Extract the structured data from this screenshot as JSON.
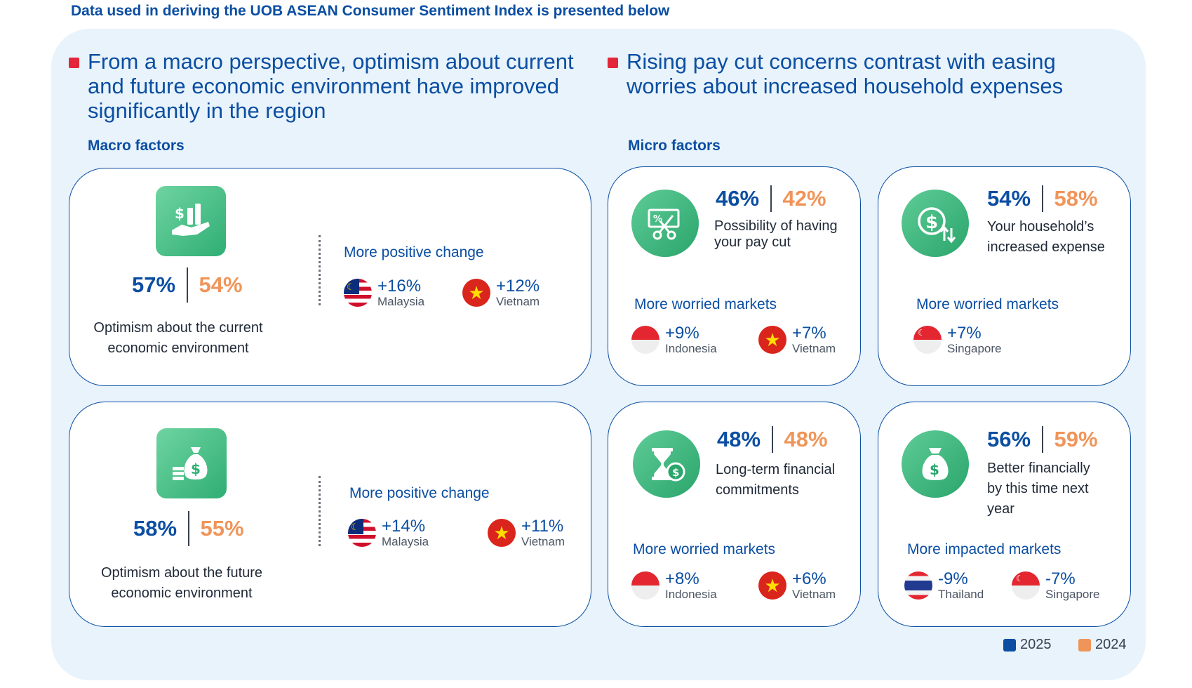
{
  "top_caption": "Data used in deriving the UOB ASEAN Consumer Sentiment Index is presented below",
  "left_headline": "From a macro perspective, optimism about current and future economic environment have improved significantly in the region",
  "right_headline": "Rising pay cut concerns contrast with easing worries about increased household expenses",
  "macro_label": "Macro factors",
  "micro_label": "Micro factors",
  "colors": {
    "year_2025": "#0b4ea2",
    "year_2024": "#f0955a",
    "accent_red": "#e3263a",
    "icon_green": "#2fae73"
  },
  "macro_cards": [
    {
      "icon": "money-hand-chart-icon",
      "value_2025": "57%",
      "value_2024": "54%",
      "desc_line1": "Optimism about the current",
      "desc_line2": "economic environment",
      "change_label": "More positive change",
      "markets": [
        {
          "flag": "malaysia-flag-icon",
          "value": "+16%",
          "name": "Malaysia"
        },
        {
          "flag": "vietnam-flag-icon",
          "value": "+12%",
          "name": "Vietnam"
        }
      ]
    },
    {
      "icon": "money-bag-coins-icon",
      "value_2025": "58%",
      "value_2024": "55%",
      "desc_line1": "Optimism about the future",
      "desc_line2": "economic environment",
      "change_label": "More positive change",
      "markets": [
        {
          "flag": "malaysia-flag-icon",
          "value": "+14%",
          "name": "Malaysia"
        },
        {
          "flag": "vietnam-flag-icon",
          "value": "+11%",
          "name": "Vietnam"
        }
      ]
    }
  ],
  "micro_cards": [
    {
      "icon": "pay-cut-scissors-icon",
      "value_2025": "46%",
      "value_2024": "42%",
      "desc_line1": "Possibility of having",
      "desc_line2": "your pay cut",
      "desc_line3": "",
      "markets_label": "More worried markets",
      "markets": [
        {
          "flag": "indonesia-flag-icon",
          "value": "+9%",
          "name": "Indonesia"
        },
        {
          "flag": "vietnam-flag-icon",
          "value": "+7%",
          "name": "Vietnam"
        }
      ]
    },
    {
      "icon": "dollar-arrows-icon",
      "value_2025": "54%",
      "value_2024": "58%",
      "desc_line1": "Your household’s",
      "desc_line2": "increased expense",
      "desc_line3": "",
      "markets_label": "More worried markets",
      "markets": [
        {
          "flag": "singapore-flag-icon",
          "value": "+7%",
          "name": "Singapore"
        }
      ]
    },
    {
      "icon": "hourglass-coin-icon",
      "value_2025": "48%",
      "value_2024": "48%",
      "desc_line1": "Long-term financial",
      "desc_line2": "commitments",
      "desc_line3": "",
      "markets_label": "More worried markets",
      "markets": [
        {
          "flag": "indonesia-flag-icon",
          "value": "+8%",
          "name": "Indonesia"
        },
        {
          "flag": "vietnam-flag-icon",
          "value": "+6%",
          "name": "Vietnam"
        }
      ]
    },
    {
      "icon": "money-bag-icon",
      "value_2025": "56%",
      "value_2024": "59%",
      "desc_line1": "Better financially",
      "desc_line2": "by this time next",
      "desc_line3": "year",
      "markets_label": "More impacted markets",
      "markets": [
        {
          "flag": "thailand-flag-icon",
          "value": "-9%",
          "name": "Thailand"
        },
        {
          "flag": "singapore-flag-icon",
          "value": "-7%",
          "name": "Singapore"
        }
      ]
    }
  ],
  "legend": {
    "label_2025": "2025",
    "label_2024": "2024"
  }
}
